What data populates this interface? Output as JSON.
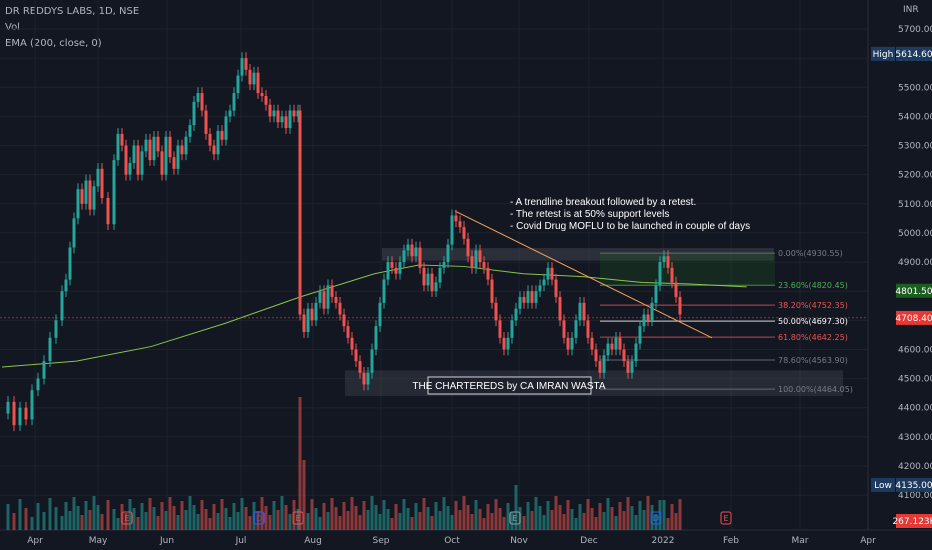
{
  "header": {
    "symbol": "DR REDDYS LABS, 1D, NSE",
    "vol": "Vol",
    "ema": "EMA (200, close, 0)",
    "currency": "INR"
  },
  "colors": {
    "background": "#131722",
    "up": "#26a69a",
    "down": "#ef5350",
    "ema": "#8bc34a",
    "trendline": "#f7a35c",
    "text": "#b2b5be",
    "annotation": "#ffffff"
  },
  "chart_data": {
    "type": "candlestick",
    "x_ticks": [
      "Apr",
      "May",
      "Jun",
      "Jul",
      "Aug",
      "Sep",
      "Oct",
      "Nov",
      "Dec",
      "2022",
      "Feb",
      "Mar",
      "Apr"
    ],
    "y_ticks": [
      4100,
      4200,
      4300,
      4400,
      4500,
      4600,
      4700,
      4800,
      4900,
      5000,
      5100,
      5200,
      5300,
      5400,
      5500,
      5600,
      5700
    ],
    "y_tick_labels": [
      "4100.00",
      "4200.00",
      "4300.00",
      "4400.00",
      "4500.00",
      "4600.00",
      "4700.00",
      "4800.00",
      "4900.00",
      "5000.00",
      "5100.00",
      "5200.00",
      "5300.00",
      "5400.00",
      "5500.00",
      "5600.00",
      "5700.00"
    ],
    "price_labels": [
      {
        "label": "High",
        "value": "5614.60",
        "price": 5614.6,
        "color": "#1e3a5f"
      },
      {
        "label": "",
        "value": "4801.50",
        "price": 4801.5,
        "color": "#1b5e20"
      },
      {
        "label": "",
        "value": "4708.40",
        "price": 4708.4,
        "color": "#e53935"
      },
      {
        "label": "Low",
        "value": "4135.00",
        "price": 4135.0,
        "color": "#1e3a5f"
      },
      {
        "label": "",
        "value": "267.123K",
        "price": 4000,
        "color": "#e53935"
      }
    ],
    "fib_levels": [
      {
        "label": "0.00%(4930.55)",
        "price": 4930.55,
        "color": "#787b86"
      },
      {
        "label": "23.60%(4820.45)",
        "price": 4820.45,
        "color": "#4caf50"
      },
      {
        "label": "38.20%(4752.35)",
        "price": 4752.35,
        "color": "#ef5350"
      },
      {
        "label": "50.00%(4697.30)",
        "price": 4697.3,
        "color": "#ffffff"
      },
      {
        "label": "61.80%(4642.25)",
        "price": 4642.25,
        "color": "#ef5350"
      },
      {
        "label": "78.60%(4563.90)",
        "price": 4563.9,
        "color": "#787b86"
      },
      {
        "label": "100.00%(4464.05)",
        "price": 4464.05,
        "color": "#787b86"
      }
    ],
    "annotation_lines": [
      "- A trendline breakout followed by a retest.",
      "- The retest is at 50% support levels",
      "- Covid Drug MOFLU to be launched in couple of days"
    ],
    "watermark": "THE CHARTEREDS by CA IMRAN WASTA",
    "candles": [
      {
        "x": 0.02,
        "c": 4400
      },
      {
        "x": 0.05,
        "c": 4450
      },
      {
        "x": 0.08,
        "c": 4520
      },
      {
        "x": 0.11,
        "c": 4600
      },
      {
        "x": 0.14,
        "c": 4700
      },
      {
        "x": 0.17,
        "c": 4900
      },
      {
        "x": 0.2,
        "c": 5050
      },
      {
        "x": 0.23,
        "c": 5150
      },
      {
        "x": 0.26,
        "c": 5120
      },
      {
        "x": 0.29,
        "c": 5230
      },
      {
        "x": 0.32,
        "c": 5180
      },
      {
        "x": 0.35,
        "c": 5330
      },
      {
        "x": 0.38,
        "c": 5320
      },
      {
        "x": 0.41,
        "c": 5290
      },
      {
        "x": 0.44,
        "c": 5240
      },
      {
        "x": 0.47,
        "c": 5270
      },
      {
        "x": 0.5,
        "c": 5300
      },
      {
        "x": 0.53,
        "c": 5340
      },
      {
        "x": 0.56,
        "c": 5380
      },
      {
        "x": 0.59,
        "c": 5300
      },
      {
        "x": 0.62,
        "c": 5470
      },
      {
        "x": 0.65,
        "c": 5600
      },
      {
        "x": 0.68,
        "c": 5470
      },
      {
        "x": 0.71,
        "c": 5430
      },
      {
        "x": 0.74,
        "c": 5420
      },
      {
        "x": 0.76,
        "c": 5400
      },
      {
        "x": 0.78,
        "c": 4700
      }
    ],
    "ema_points": [
      [
        0,
        4540
      ],
      [
        0.1,
        4560
      ],
      [
        0.2,
        4610
      ],
      [
        0.3,
        4690
      ],
      [
        0.4,
        4780
      ],
      [
        0.5,
        4860
      ],
      [
        0.56,
        4890
      ],
      [
        0.62,
        4885
      ],
      [
        0.7,
        4860
      ],
      [
        0.78,
        4850
      ],
      [
        0.86,
        4830
      ],
      [
        0.92,
        4825
      ],
      [
        1.0,
        4815
      ]
    ],
    "trendline": [
      [
        0.0,
        5075
      ],
      [
        1.0,
        4640
      ]
    ]
  }
}
